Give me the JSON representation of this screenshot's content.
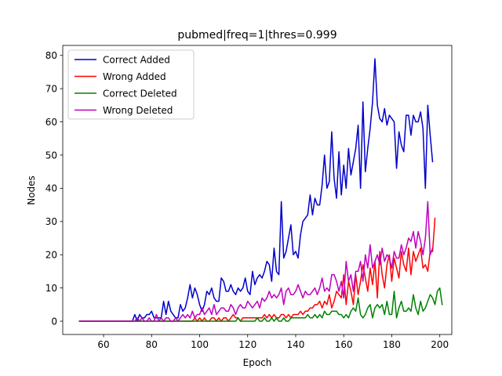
{
  "chart_data": {
    "type": "line",
    "title": "pubmed|freq=1|thres=0.999",
    "xlabel": "Epoch",
    "ylabel": "Nodes",
    "xlim": [
      43,
      205
    ],
    "ylim": [
      -4,
      83
    ],
    "xticks": [
      60,
      80,
      100,
      120,
      140,
      160,
      180,
      200
    ],
    "yticks": [
      0,
      10,
      20,
      30,
      40,
      50,
      60,
      70,
      80
    ],
    "grid": false,
    "legend_position": "top-left",
    "series": [
      {
        "name": "Correct Added",
        "color": "#0000cc",
        "x_start": 50,
        "x_step": 1,
        "values": [
          0,
          0,
          0,
          0,
          0,
          0,
          0,
          0,
          0,
          0,
          0,
          0,
          0,
          0,
          0,
          0,
          0,
          0,
          0,
          0,
          0,
          0,
          0,
          2,
          0,
          2,
          1,
          1,
          2,
          2,
          3,
          1,
          1,
          1,
          1,
          6,
          2,
          6,
          3,
          2,
          1,
          1,
          5,
          3,
          4,
          7,
          11,
          7,
          10,
          8,
          5,
          3,
          5,
          9,
          8,
          10,
          7,
          6,
          6,
          13,
          12,
          9,
          9,
          11,
          9,
          8,
          10,
          9,
          10,
          13,
          9,
          8,
          15,
          11,
          13,
          14,
          13,
          15,
          18,
          17,
          12,
          22,
          15,
          14,
          36,
          19,
          21,
          25,
          29,
          20,
          21,
          19,
          26,
          30,
          31,
          32,
          38,
          32,
          37,
          35,
          35,
          41,
          50,
          40,
          42,
          57,
          43,
          37,
          51,
          38,
          47,
          40,
          52,
          44,
          48,
          52,
          59,
          40,
          66,
          45,
          52,
          58,
          66,
          79,
          65,
          61,
          60,
          64,
          59,
          62,
          61,
          60,
          46,
          57,
          53,
          51,
          62,
          62,
          56,
          62,
          60,
          60,
          63,
          58,
          40,
          65,
          56,
          48
        ]
      },
      {
        "name": "Wrong Added",
        "color": "#ff0000",
        "x_start": 50,
        "x_step": 1,
        "values": [
          0,
          0,
          0,
          0,
          0,
          0,
          0,
          0,
          0,
          0,
          0,
          0,
          0,
          0,
          0,
          0,
          0,
          0,
          0,
          0,
          0,
          0,
          0,
          0,
          0,
          0,
          0,
          0,
          0,
          0,
          0,
          0,
          0,
          0,
          0,
          0,
          0,
          0,
          0,
          0,
          0,
          0,
          0,
          0,
          0,
          0,
          0,
          0,
          1,
          0,
          1,
          0,
          1,
          0,
          0,
          1,
          1,
          0,
          1,
          0,
          1,
          1,
          0,
          1,
          2,
          1,
          1,
          0,
          1,
          1,
          1,
          1,
          1,
          1,
          1,
          1,
          1,
          2,
          1,
          2,
          1,
          2,
          1,
          1,
          2,
          2,
          1,
          2,
          1,
          2,
          2,
          2,
          3,
          2,
          3,
          3,
          4,
          4,
          5,
          5,
          6,
          4,
          6,
          5,
          8,
          4,
          6,
          9,
          8,
          7,
          14,
          5,
          12,
          9,
          5,
          14,
          8,
          12,
          17,
          13,
          9,
          16,
          11,
          18,
          7,
          21,
          14,
          10,
          17,
          20,
          12,
          19,
          16,
          13,
          21,
          17,
          15,
          22,
          14,
          21,
          18,
          20,
          22,
          16,
          17,
          15,
          21,
          21,
          31
        ]
      },
      {
        "name": "Correct Deleted",
        "color": "#008000",
        "x_start": 50,
        "x_step": 1,
        "values": [
          0,
          0,
          0,
          0,
          0,
          0,
          0,
          0,
          0,
          0,
          0,
          0,
          0,
          0,
          0,
          0,
          0,
          0,
          0,
          0,
          0,
          0,
          0,
          0,
          0,
          0,
          0,
          0,
          0,
          0,
          0,
          0,
          0,
          0,
          0,
          0,
          0,
          0,
          0,
          0,
          0,
          0,
          0,
          0,
          0,
          0,
          0,
          0,
          0,
          0,
          0,
          0,
          0,
          0,
          0,
          0,
          0,
          0,
          0,
          0,
          0,
          0,
          0,
          0,
          0,
          0,
          1,
          0,
          0,
          0,
          0,
          0,
          0,
          0,
          1,
          0,
          0,
          1,
          0,
          0,
          1,
          0,
          1,
          0,
          0,
          1,
          0,
          0,
          1,
          1,
          1,
          1,
          1,
          1,
          1,
          2,
          1,
          1,
          2,
          1,
          2,
          1,
          3,
          2,
          2,
          3,
          3,
          3,
          2,
          2,
          1,
          2,
          1,
          3,
          4,
          3,
          7,
          2,
          1,
          2,
          4,
          5,
          1,
          4,
          5,
          4,
          5,
          2,
          6,
          2,
          2,
          9,
          1,
          4,
          6,
          3,
          3,
          4,
          3,
          8,
          4,
          2,
          6,
          3,
          4,
          6,
          8,
          7,
          5,
          9,
          10,
          5
        ]
      },
      {
        "name": "Wrong Deleted",
        "color": "#bf00bf",
        "x_start": 50,
        "x_step": 1,
        "values": [
          0,
          0,
          0,
          0,
          0,
          0,
          0,
          0,
          0,
          0,
          0,
          0,
          0,
          0,
          0,
          0,
          0,
          0,
          0,
          0,
          0,
          0,
          0,
          0,
          1,
          0,
          1,
          0,
          0,
          1,
          0,
          0,
          2,
          0,
          1,
          0,
          1,
          1,
          0,
          0,
          1,
          0,
          1,
          2,
          1,
          2,
          1,
          3,
          1,
          2,
          2,
          4,
          2,
          3,
          4,
          2,
          5,
          2,
          3,
          4,
          4,
          3,
          3,
          5,
          4,
          2,
          4,
          5,
          4,
          4,
          6,
          5,
          4,
          5,
          6,
          4,
          7,
          6,
          7,
          9,
          7,
          8,
          7,
          8,
          10,
          5,
          9,
          10,
          8,
          8,
          9,
          11,
          9,
          7,
          9,
          8,
          8,
          9,
          10,
          8,
          10,
          13,
          9,
          10,
          9,
          14,
          14,
          12,
          9,
          12,
          7,
          18,
          12,
          14,
          9,
          15,
          15,
          18,
          12,
          20,
          16,
          23,
          16,
          18,
          20,
          17,
          22,
          18,
          20,
          19,
          16,
          21,
          19,
          19,
          23,
          20,
          22,
          25,
          24,
          27,
          22,
          27,
          24,
          20,
          25,
          36,
          20,
          22
        ]
      }
    ]
  }
}
